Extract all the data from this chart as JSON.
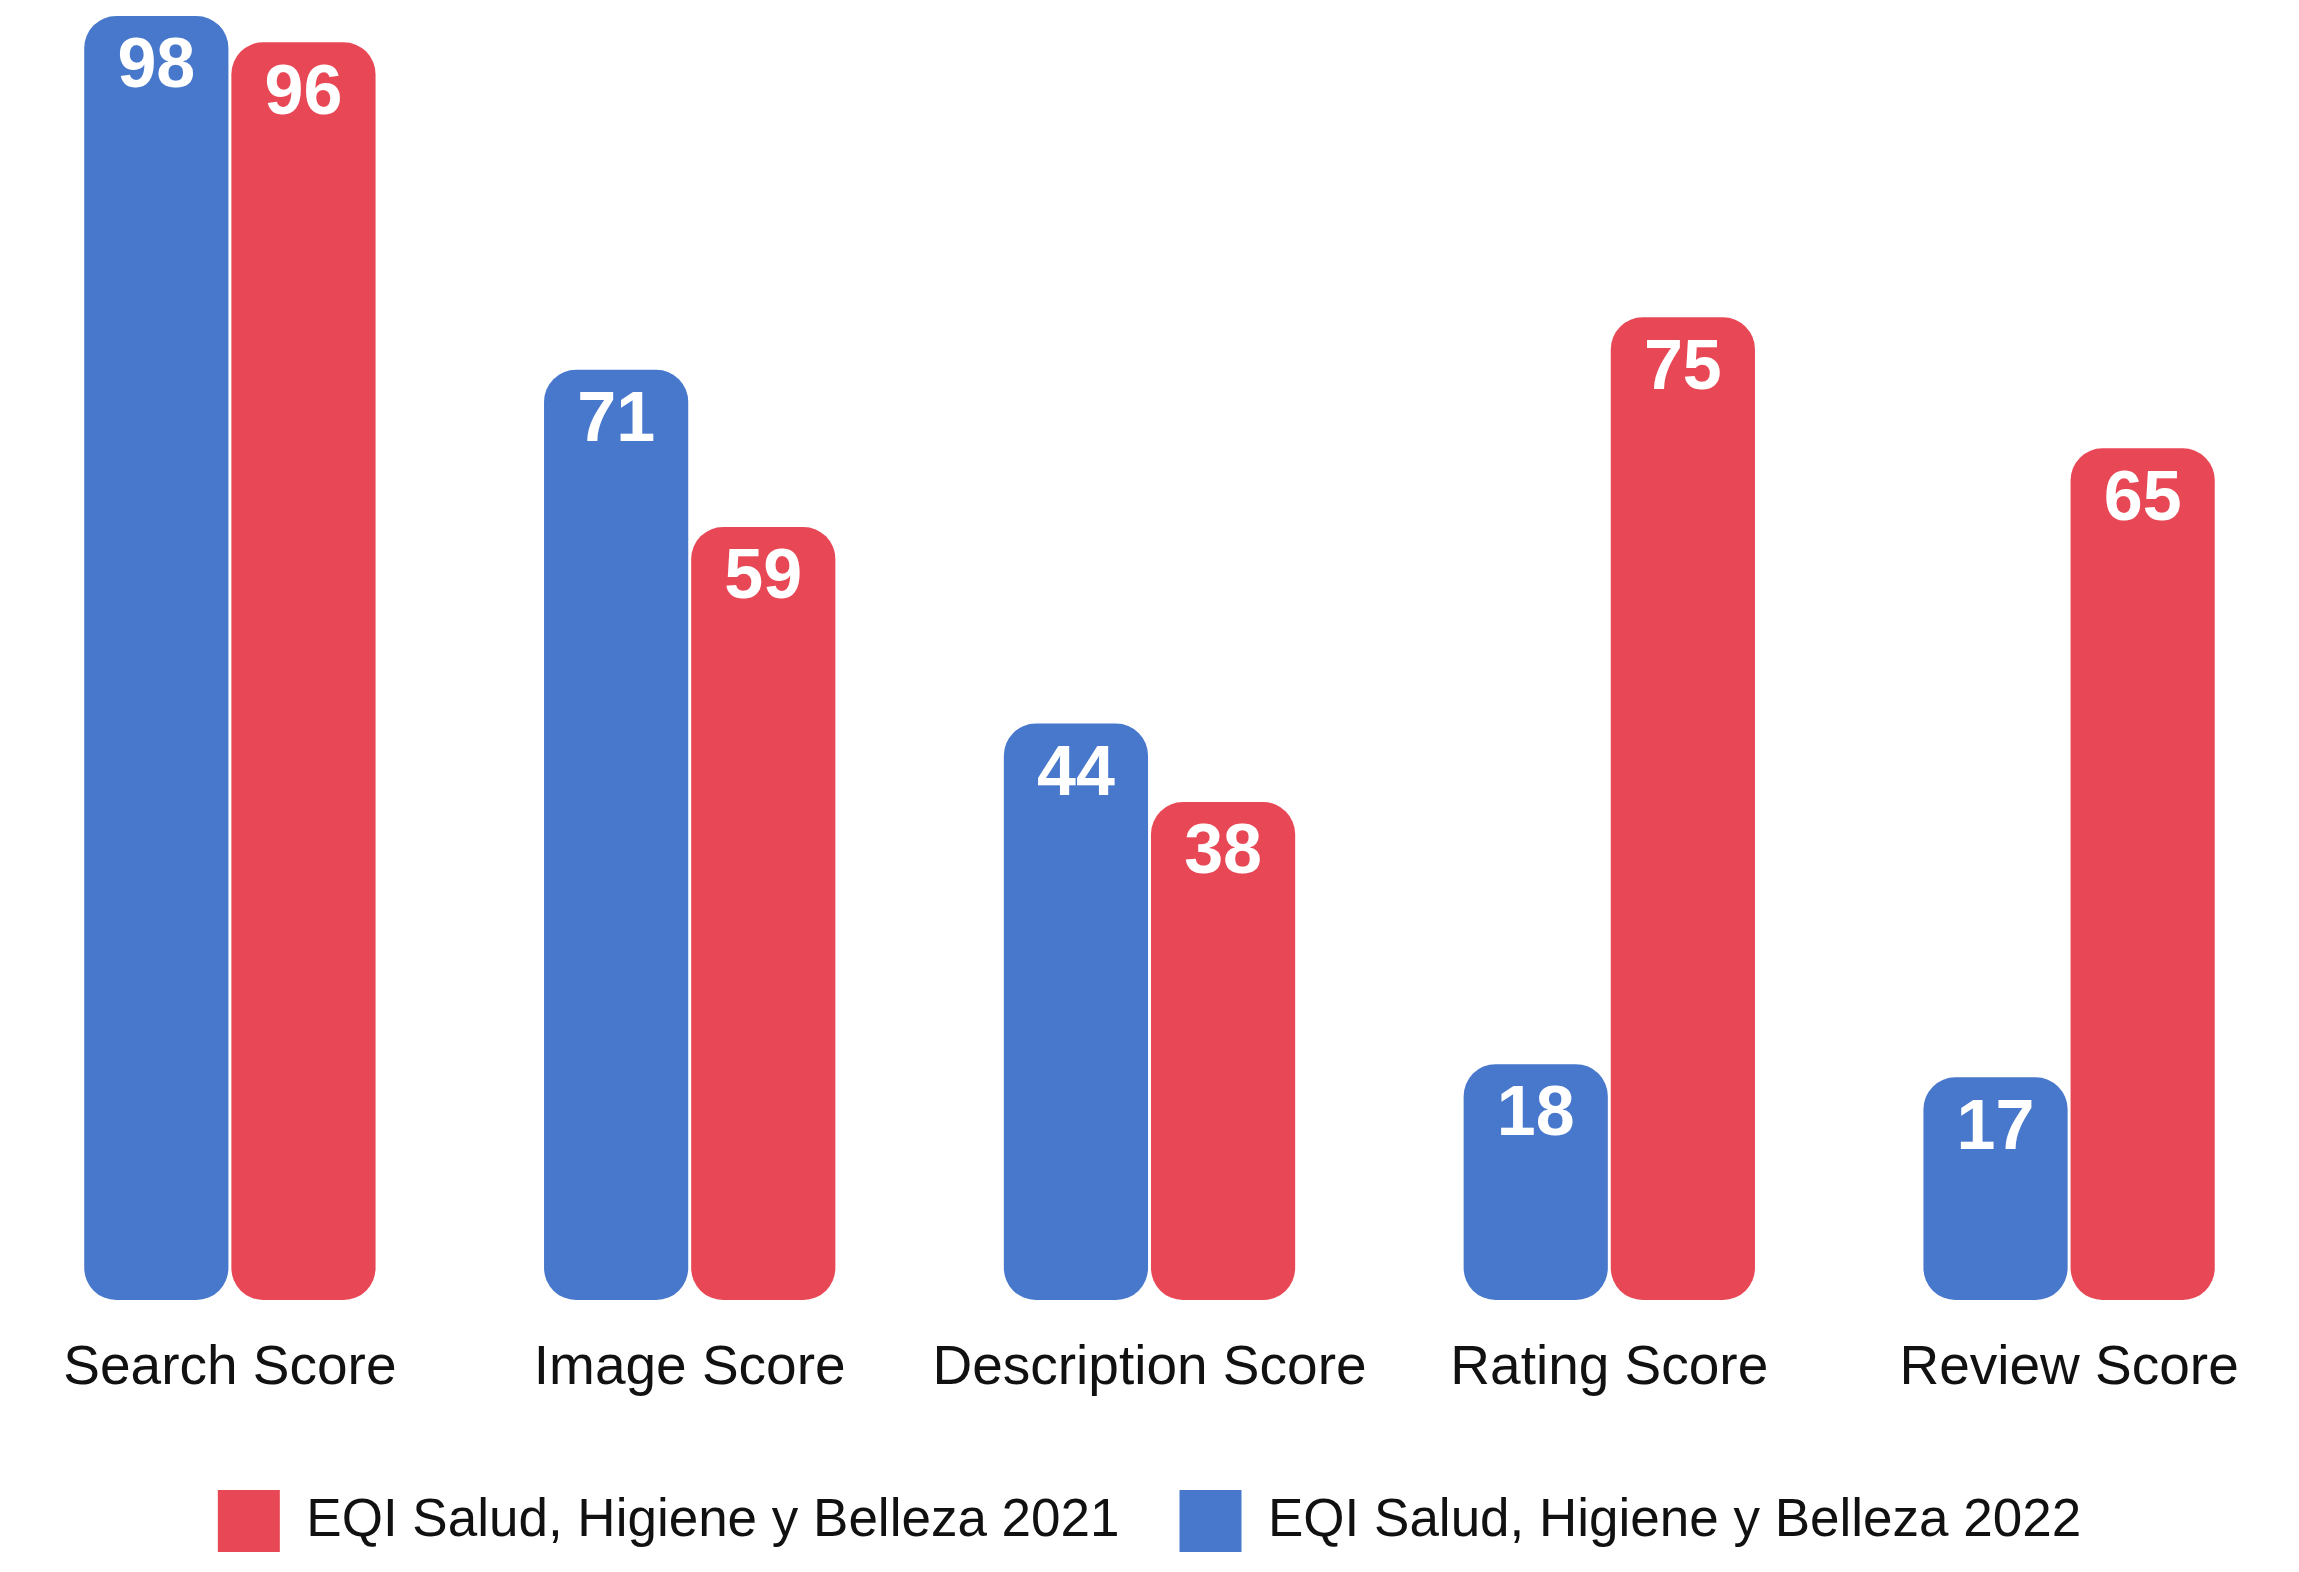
{
  "chart_data": {
    "type": "bar",
    "categories": [
      "Search Score",
      "Image Score",
      "Description Score",
      "Rating Score",
      "Review Score"
    ],
    "series": [
      {
        "name": "EQI Salud, Higiene y Belleza 2022",
        "color": "#4878cc",
        "values": [
          98,
          71,
          44,
          18,
          17
        ]
      },
      {
        "name": "EQI Salud, Higiene y Belleza 2021",
        "color": "#e84855",
        "values": [
          96,
          59,
          38,
          75,
          65
        ]
      }
    ],
    "ylim": [
      0,
      98
    ],
    "tick_labels": "x",
    "grid": false,
    "legend": "bottom",
    "data_labels": true
  }
}
